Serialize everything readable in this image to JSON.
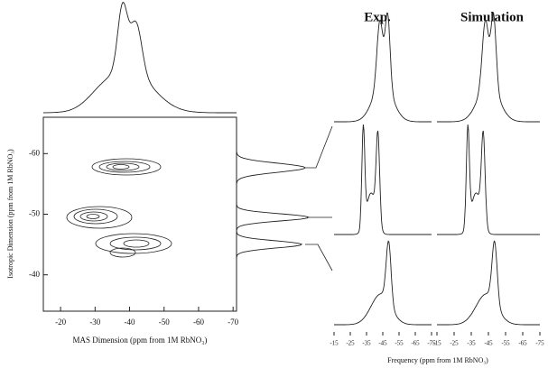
{
  "chart_data": {
    "type": "contour",
    "xlabel": "MAS Dimension (ppm from 1M RbNO₃)",
    "ylabel": "Isotropic Dimension (ppm from 1M RbNO₃)",
    "xlim": [
      -15,
      -71
    ],
    "xticks": [
      -20,
      -30,
      -40,
      -50,
      -60,
      -70
    ],
    "ylim": [
      -66,
      -34
    ],
    "yticks": [
      -60,
      -50,
      -40
    ],
    "panel_titles": [
      "Exp.",
      "Simulation"
    ],
    "spectra_xlabel": "Frequency (ppm from 1M RbNO₃)",
    "spectra_xlim": [
      -15,
      -75
    ],
    "spectra_xticks": [
      -15,
      -25,
      -35,
      -45,
      -55,
      -65,
      -75
    ]
  }
}
